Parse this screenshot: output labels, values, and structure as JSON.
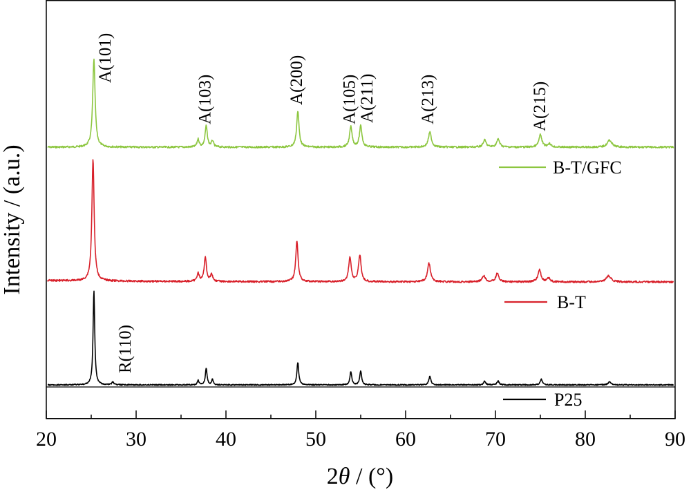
{
  "chart_data": {
    "type": "line",
    "xlabel": {
      "prefix": "2",
      "italic": "θ",
      "suffix": " / (°)"
    },
    "ylabel": "Intensity / (a.u.)",
    "xlim": [
      20,
      90
    ],
    "x_ticks": [
      20,
      30,
      40,
      50,
      60,
      70,
      80,
      90
    ],
    "y_ticks_shown": false,
    "grid": false,
    "legend_placement": "right (beside each curve)",
    "series": [
      {
        "name": "B-T/GFC",
        "color": "#8cc63f",
        "peaks": [
          {
            "x": 25.3,
            "h": 1.0,
            "w": 0.16
          },
          {
            "x": 36.9,
            "h": 0.09,
            "w": 0.14
          },
          {
            "x": 37.8,
            "h": 0.24,
            "w": 0.15
          },
          {
            "x": 38.5,
            "h": 0.07,
            "w": 0.14
          },
          {
            "x": 48.0,
            "h": 0.41,
            "w": 0.16
          },
          {
            "x": 53.9,
            "h": 0.23,
            "w": 0.17
          },
          {
            "x": 55.0,
            "h": 0.24,
            "w": 0.17
          },
          {
            "x": 62.7,
            "h": 0.17,
            "w": 0.2
          },
          {
            "x": 68.8,
            "h": 0.08,
            "w": 0.2
          },
          {
            "x": 70.3,
            "h": 0.09,
            "w": 0.2
          },
          {
            "x": 75.0,
            "h": 0.14,
            "w": 0.2
          },
          {
            "x": 76.0,
            "h": 0.04,
            "w": 0.2
          },
          {
            "x": 82.7,
            "h": 0.08,
            "w": 0.3
          }
        ]
      },
      {
        "name": "B-T",
        "color": "#d8202a",
        "peaks": [
          {
            "x": 25.2,
            "h": 1.0,
            "w": 0.15
          },
          {
            "x": 36.9,
            "h": 0.07,
            "w": 0.14
          },
          {
            "x": 37.7,
            "h": 0.2,
            "w": 0.15
          },
          {
            "x": 38.4,
            "h": 0.06,
            "w": 0.14
          },
          {
            "x": 47.9,
            "h": 0.33,
            "w": 0.16
          },
          {
            "x": 53.8,
            "h": 0.2,
            "w": 0.17
          },
          {
            "x": 54.9,
            "h": 0.22,
            "w": 0.17
          },
          {
            "x": 62.6,
            "h": 0.15,
            "w": 0.2
          },
          {
            "x": 68.7,
            "h": 0.05,
            "w": 0.2
          },
          {
            "x": 70.2,
            "h": 0.07,
            "w": 0.2
          },
          {
            "x": 74.9,
            "h": 0.1,
            "w": 0.2
          },
          {
            "x": 75.9,
            "h": 0.03,
            "w": 0.2
          },
          {
            "x": 82.6,
            "h": 0.05,
            "w": 0.3
          }
        ]
      },
      {
        "name": "P25",
        "color": "#000000",
        "peaks": [
          {
            "x": 25.3,
            "h": 1.0,
            "w": 0.11
          },
          {
            "x": 27.4,
            "h": 0.03,
            "w": 0.11
          },
          {
            "x": 36.9,
            "h": 0.05,
            "w": 0.1
          },
          {
            "x": 37.8,
            "h": 0.18,
            "w": 0.11
          },
          {
            "x": 38.5,
            "h": 0.06,
            "w": 0.1
          },
          {
            "x": 48.0,
            "h": 0.24,
            "w": 0.12
          },
          {
            "x": 53.9,
            "h": 0.14,
            "w": 0.12
          },
          {
            "x": 55.0,
            "h": 0.15,
            "w": 0.12
          },
          {
            "x": 62.7,
            "h": 0.09,
            "w": 0.14
          },
          {
            "x": 68.8,
            "h": 0.04,
            "w": 0.14
          },
          {
            "x": 70.3,
            "h": 0.04,
            "w": 0.14
          },
          {
            "x": 75.1,
            "h": 0.06,
            "w": 0.14
          },
          {
            "x": 82.7,
            "h": 0.03,
            "w": 0.2
          }
        ]
      }
    ],
    "annotations": [
      {
        "text": "A(101)",
        "x": 25.3
      },
      {
        "text": "A(103)",
        "x": 37.8
      },
      {
        "text": "A(200)",
        "x": 48.0
      },
      {
        "text": "A(105)",
        "x": 53.9
      },
      {
        "text": "A(211)",
        "x": 55.0
      },
      {
        "text": "A(213)",
        "x": 62.7
      },
      {
        "text": "A(215)",
        "x": 75.0
      },
      {
        "text": "R(110)",
        "x": 27.4
      }
    ]
  }
}
